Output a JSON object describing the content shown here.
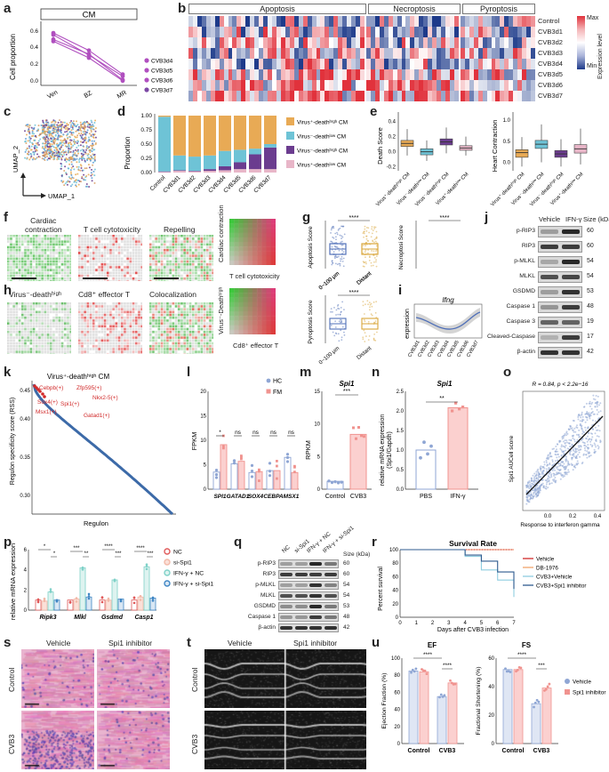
{
  "labels": [
    "a",
    "b",
    "c",
    "d",
    "e",
    "f",
    "g",
    "h",
    "i",
    "j",
    "k",
    "l",
    "m",
    "n",
    "o",
    "p",
    "q",
    "r",
    "s",
    "t",
    "u"
  ],
  "panel_a": {
    "title": "CM",
    "ylabel": "Cell proportion",
    "xticks": [
      "Ven",
      "BZ",
      "MR"
    ],
    "yticks": [
      "0.6",
      "0.4",
      "0.2",
      "0.0"
    ],
    "legend": [
      "CVB3d4",
      "CVB3d5",
      "CVB3d6",
      "CVB3d7"
    ],
    "color": "#b04fbf"
  },
  "panel_b": {
    "groups": [
      "Apoptosis",
      "Necroptosis",
      "Pyroptosis"
    ],
    "rows": [
      "Control",
      "CVB3d1",
      "CVB3d2",
      "CVB3d3",
      "CVB3d4",
      "CVB3d5",
      "CVB3d6",
      "CVB3d7"
    ],
    "scale_max": "Max",
    "scale_min": "Min",
    "scale_title": "Expression level"
  },
  "panel_c": {
    "x": "UMAP_1",
    "y": "UMAP_2"
  },
  "panel_d": {
    "ylabel": "Proportion",
    "yticks": [
      "1.00",
      "0.75",
      "0.50",
      "0.25",
      "0.00"
    ],
    "categories": [
      "Control",
      "CVB3d1",
      "CVB3d2",
      "CVB3d3",
      "CVB3d4",
      "CVB3d5",
      "CVB3d6",
      "CVB3d7"
    ],
    "legend": [
      "Virus⁺-deathʰⁱᵍʰ CM",
      "Virus⁻-deathˡᵒʷ CM",
      "Virus⁻-deathʰⁱᵍʰ CM",
      "Virus⁺-deathˡᵒʷ CM"
    ]
  },
  "panel_e": {
    "left_ylabel": "Death Score",
    "left_yticks": [
      "0.4",
      "0.2",
      "0.0",
      "-0.2"
    ],
    "right_ylabel": "Heart Contraction",
    "right_yticks": [
      "1.0",
      "0.5",
      "0.0"
    ],
    "xlabels": [
      "Virus⁺-deathʰⁱᵍʰ CM",
      "Virus⁻-deathˡᵒʷ CM",
      "Virus⁻-deathʰⁱᵍʰ CM",
      "Virus⁺-deathˡᵒʷ CM"
    ]
  },
  "panel_f": {
    "titles": [
      "Cardiac\ncontraction",
      "T cell cytotoxicity",
      "Repelling"
    ],
    "scale_y": "Cardiac contraction",
    "scale_x": "T cell cytotoxicity",
    "ticks": [
      "0",
      "2",
      "4",
      "6",
      "8",
      "10"
    ]
  },
  "panel_g": {
    "plots": [
      {
        "ylabel": "Apoptosis Score",
        "sig": "****"
      },
      {
        "ylabel": "Necroptosi Score",
        "sig": "****"
      },
      {
        "ylabel": "Pyroptosis Score",
        "sig": "****"
      }
    ],
    "xlabels": [
      "0~100 μm",
      "Distant"
    ]
  },
  "panel_h": {
    "titles": [
      "Virus⁻-deathʰⁱᵍʰ",
      "Cd8⁺ effector T",
      "Colocalization"
    ],
    "scale_y": "Virus⁻-Deathʰⁱᵍʰ",
    "scale_x": "Cd8⁺ effector T"
  },
  "panel_i": {
    "gene": "Ifng",
    "ylabel": "expression",
    "xticks": [
      "CVB3d1",
      "CVB3d2",
      "CVB3d3",
      "CVB3d4",
      "CVB3d5",
      "CVB3d6",
      "CVB3d7"
    ]
  },
  "panel_j": {
    "headers": [
      "Vehicle",
      "IFN-γ",
      "Size (kDa)"
    ],
    "bands": [
      {
        "name": "p-RIP3",
        "size": "60"
      },
      {
        "name": "RIP3",
        "size": "60"
      },
      {
        "name": "p-MLKL",
        "size": "54"
      },
      {
        "name": "MLKL",
        "size": "54"
      },
      {
        "name": "GSDMD",
        "size": "53"
      },
      {
        "name": "Caspase 1",
        "size": "48"
      },
      {
        "name": "Caspase 3",
        "size": "19"
      },
      {
        "name": "Cleaved-Caspase 3",
        "size": "17"
      },
      {
        "name": "β-actin",
        "size": "42"
      }
    ]
  },
  "panel_k": {
    "title": "Virus⁺-deathʰⁱᵍʰ CM",
    "ylabel": "Regulon specificity score (RSS)",
    "xlabel": "Regulon",
    "yticks": [
      "0.45",
      "0.40",
      "0.35",
      "0.30"
    ],
    "annotations": [
      "Cebpb(+)",
      "Zfp595(+)",
      "Nkx2-5(+)",
      "Sox4(+)",
      "Spi1(+)",
      "Msx1(+)",
      "Gatad1(+)"
    ]
  },
  "panel_l": {
    "ylabel": "FPKM",
    "genes": [
      "SPI1",
      "GATAD1",
      "SOX4",
      "CEBPA",
      "MSX1"
    ],
    "sig": [
      "*",
      "ns",
      "ns",
      "ns",
      "ns"
    ],
    "legend": [
      "HC",
      "FM"
    ],
    "yticks": [
      "20",
      "15",
      "10",
      "5",
      "0"
    ]
  },
  "panel_m": {
    "gene": "Spi1",
    "ylabel": "RPKM",
    "sig": "***",
    "xticks": [
      "Control",
      "CVB3"
    ],
    "yticks": [
      "15",
      "10",
      "5",
      "0"
    ]
  },
  "panel_n": {
    "gene": "Spi1",
    "ylabel": "relative mRNA expression\n(Spi1/Gapdh)",
    "sig": "**",
    "xticks": [
      "PBS",
      "IFN-γ"
    ],
    "yticks": [
      "2.5",
      "2.0",
      "1.5",
      "1.0",
      "0.5",
      "0.0"
    ]
  },
  "panel_o": {
    "stat": "R = 0.84, p < 2.2e−16",
    "ylabel": "Spi1 AUCell score",
    "xlabel": "Response to interferon gamma",
    "xticks": [
      "0.0",
      "0.2",
      "0.4"
    ]
  },
  "panel_p": {
    "ylabel": "relative mRNA expression",
    "genes": [
      "Ripk3",
      "Mlkl",
      "Gsdmd",
      "Casp1"
    ],
    "legend": [
      "NC",
      "si-Spi1",
      "IFN-γ + NC",
      "IFN-γ + si-Spi1"
    ],
    "sig": [
      "*",
      "*",
      "***",
      "**",
      "****",
      "***",
      "****",
      "***"
    ],
    "yticks": [
      "6",
      "4",
      "2",
      "0"
    ]
  },
  "panel_q": {
    "headers": [
      "NC",
      "si-Spi1",
      "IFN-γ + NC",
      "IFN-γ + si-Spi1",
      "Size (kDa)"
    ],
    "bands": [
      {
        "name": "p-RIP3",
        "size": "60"
      },
      {
        "name": "RIP3",
        "size": "60"
      },
      {
        "name": "p-MLKL",
        "size": "54"
      },
      {
        "name": "MLKL",
        "size": "54"
      },
      {
        "name": "GSDMD",
        "size": "53"
      },
      {
        "name": "Caspase 1",
        "size": "48"
      },
      {
        "name": "β-actin",
        "size": "42"
      }
    ]
  },
  "panel_r": {
    "title": "Survival Rate",
    "ylabel": "Percent survival",
    "xlabel": "Days after CVB3 infection",
    "yticks": [
      "100",
      "80",
      "60",
      "40",
      "20",
      "0"
    ],
    "xticks": [
      "0",
      "1",
      "2",
      "3",
      "4",
      "5",
      "6",
      "7"
    ],
    "legend": [
      "Vehicle",
      "DB-1976",
      "CVB3+Vehicle",
      "CVB3+Spi1 inhibitor"
    ]
  },
  "panel_s": {
    "cols": [
      "Vehicle",
      "Spi1 inhibitor"
    ],
    "rows": [
      "Control",
      "CVB3"
    ]
  },
  "panel_t": {
    "cols": [
      "Vehicle",
      "Spi1 inhibitor"
    ],
    "rows": [
      "Control",
      "CVB3"
    ]
  },
  "panel_u": {
    "ef_title": "EF",
    "fs_title": "FS",
    "ef_ylabel": "Ejection Fraction (%)",
    "fs_ylabel": "Fractional Shortening (%)",
    "ef_yticks": [
      "100",
      "80",
      "60",
      "40",
      "20",
      "0"
    ],
    "fs_yticks": [
      "60",
      "40",
      "20",
      "0"
    ],
    "xticks": [
      "Control",
      "CVB3"
    ],
    "sig": [
      "****",
      "****",
      "****",
      "***"
    ],
    "legend": [
      "Vehicle",
      "Spi1 inhibitor"
    ]
  },
  "colors": {
    "purple": "#b04fbf",
    "orange": "#e8aa55",
    "teal": "#6ec3d6",
    "darkpurple": "#6b3c8f",
    "pink": "#e8b6c8",
    "blue": "#8fa6d4",
    "salmon": "#f0938f",
    "hmred": "#e0323c",
    "hmblue": "#1d3a8a"
  }
}
